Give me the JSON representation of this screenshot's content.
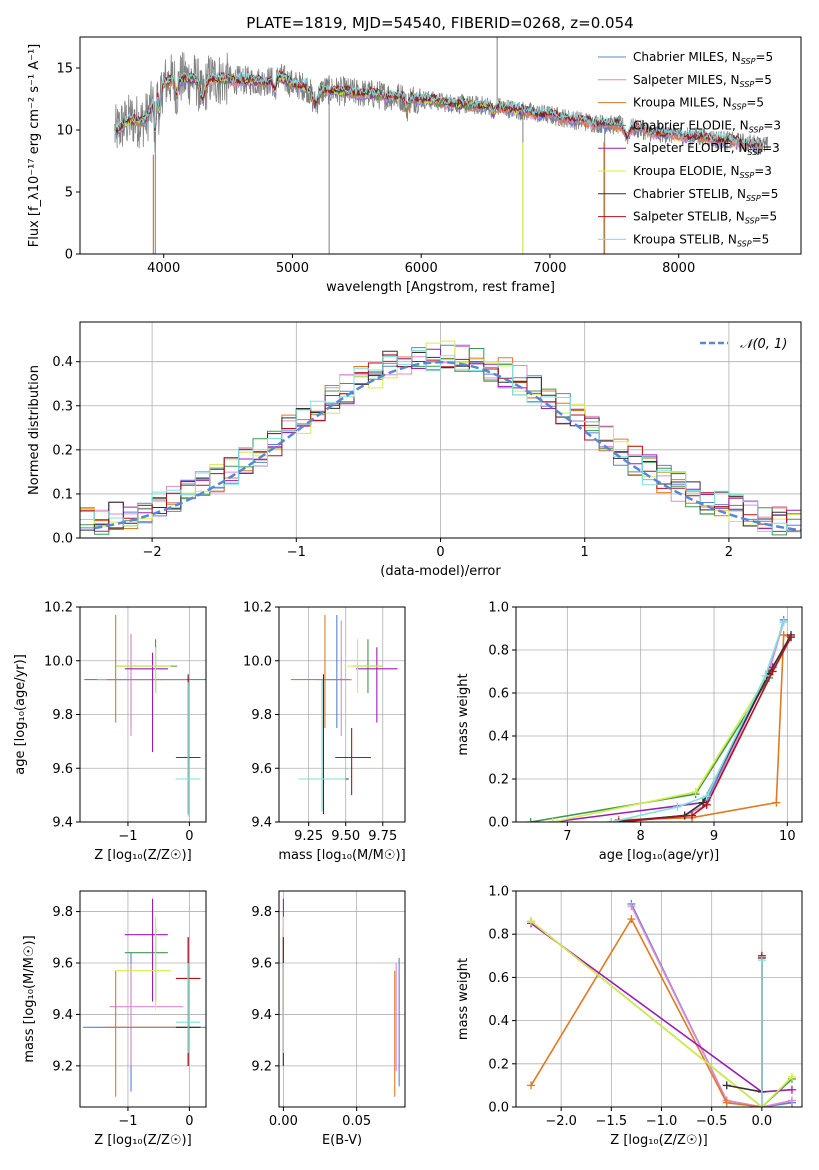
{
  "title": "PLATE=1819, MJD=54540, FIBERID=0268, z=0.054",
  "colors": {
    "Chabrier MILES": "#5b80d6",
    "Salpeter MILES": "#e08ad0",
    "Kroupa MILES": "#e07a20",
    "Chabrier ELODIE": "#3f9a50",
    "Salpeter ELODIE": "#9a1fb5",
    "Kroupa ELODIE": "#d6ec4a",
    "Chabrier STELIB": "#303030",
    "Salpeter STELIB": "#b3121d",
    "Kroupa STELIB": "#7fe0e0",
    "data": "#808080",
    "gauss": "#5588dd"
  },
  "chart_data": [
    {
      "type": "line",
      "id": "spectrum",
      "xlabel": "wavelength [Angstrom, rest frame]",
      "ylabel": "Flux [f_λ10⁻¹⁷ erg cm⁻² s⁻¹ A⁻¹]",
      "xlim": [
        3350,
        8950
      ],
      "ylim": [
        0,
        17.5
      ],
      "xticks": [
        4000,
        5000,
        6000,
        7000,
        8000
      ],
      "yticks": [
        0,
        5,
        10,
        15
      ],
      "legend_position": "top-right",
      "legend": [
        {
          "name": "Chabrier MILES",
          "n_ssp": "5"
        },
        {
          "name": "Salpeter MILES",
          "n_ssp": "5"
        },
        {
          "name": "Kroupa MILES",
          "n_ssp": "5"
        },
        {
          "name": "Chabrier ELODIE",
          "n_ssp": "3"
        },
        {
          "name": "Salpeter ELODIE",
          "n_ssp": "3"
        },
        {
          "name": "Kroupa ELODIE",
          "n_ssp": "3"
        },
        {
          "name": "Chabrier STELIB",
          "n_ssp": "5"
        },
        {
          "name": "Salpeter STELIB",
          "n_ssp": "5"
        },
        {
          "name": "Kroupa STELIB",
          "n_ssp": "5"
        }
      ],
      "continuum": {
        "x": [
          3620,
          3700,
          3800,
          3900,
          4000,
          4100,
          4200,
          4400,
          4600,
          4800,
          4900,
          5000,
          5200,
          5400,
          5600,
          5800,
          6000,
          6200,
          6400,
          6600,
          6800,
          7000,
          7200,
          7400,
          7600,
          7800,
          8000,
          8200,
          8400,
          8700
        ],
        "y": [
          9.8,
          10.6,
          11.8,
          12.8,
          13.8,
          14.2,
          14.1,
          14.1,
          14.0,
          13.9,
          14.3,
          13.7,
          13.3,
          13.1,
          12.9,
          12.7,
          12.5,
          12.2,
          12.0,
          11.9,
          11.5,
          11.2,
          10.8,
          10.5,
          10.3,
          9.8,
          9.6,
          9.4,
          9.1,
          8.7
        ]
      }
    },
    {
      "type": "histogram",
      "id": "residuals",
      "xlabel": "(data-model)/error",
      "ylabel": "Normed distribution",
      "xlim": [
        -2.5,
        2.5
      ],
      "ylim": [
        0,
        0.49
      ],
      "xticks": [
        -2,
        -1,
        0,
        1,
        2
      ],
      "yticks": [
        0.0,
        0.1,
        0.2,
        0.3,
        0.4
      ],
      "legend": "𝒩(0, 1)",
      "legend_position": "top-right",
      "grid": true
    },
    {
      "type": "scatter",
      "id": "z-age",
      "xlabel": "Z [log₁₀(Z/Z☉)]",
      "ylabel": "age  [log₁₀(age/yr)]",
      "xlim": [
        -1.78,
        0.27
      ],
      "ylim": [
        9.4,
        10.2
      ],
      "xticks": [
        -1,
        0
      ],
      "yticks": [
        9.4,
        9.6,
        9.8,
        10.0,
        10.2
      ],
      "grid": true,
      "points": [
        {
          "model": "Chabrier MILES",
          "x": -0.18,
          "xerr": 1.53,
          "y": 9.93,
          "yerr": 0.03,
          "vx": -0.95,
          "vy0": 9.75,
          "vy1": 10.1
        },
        {
          "model": "Salpeter MILES",
          "x": -0.95,
          "xerr": 0.55,
          "y": 9.93,
          "yerr": 0.02,
          "vx": -0.95,
          "vy0": 9.72,
          "vy1": 10.1
        },
        {
          "model": "Kroupa MILES",
          "x": -0.7,
          "xerr": 0.65,
          "y": 9.93,
          "yerr": 0.02,
          "vx": -1.2,
          "vy0": 9.77,
          "vy1": 10.17
        },
        {
          "model": "Chabrier ELODIE",
          "x": -0.7,
          "xerr": 0.5,
          "y": 9.98,
          "yerr": 0.01,
          "vx": -0.55,
          "vy0": 9.88,
          "vy1": 10.08
        },
        {
          "model": "Salpeter ELODIE",
          "x": -0.7,
          "xerr": 0.35,
          "y": 9.97,
          "yerr": 0.01,
          "vx": -0.6,
          "vy0": 9.66,
          "vy1": 10.03
        },
        {
          "model": "Kroupa ELODIE",
          "x": -0.75,
          "xerr": 0.45,
          "y": 9.98,
          "yerr": 0.01,
          "vx": -0.55,
          "vy0": 9.88,
          "vy1": 10.05
        },
        {
          "model": "Chabrier STELIB",
          "x": -0.02,
          "xerr": 0.2,
          "y": 9.56,
          "yerr": 0.01,
          "vx": -0.02,
          "vy0": 9.43,
          "vy1": 9.95
        },
        {
          "model": "Salpeter STELIB",
          "x": -0.02,
          "xerr": 0.2,
          "y": 9.64,
          "yerr": 0.01,
          "vx": -0.02,
          "vy0": 9.43,
          "vy1": 9.94
        },
        {
          "model": "Kroupa STELIB",
          "x": -0.02,
          "xerr": 0.2,
          "y": 9.56,
          "yerr": 0.01,
          "vx": -0.02,
          "vy0": 9.42,
          "vy1": 9.92
        }
      ]
    },
    {
      "type": "scatter",
      "id": "mass-age",
      "xlabel": "mass [log₁₀(M/M☉)]",
      "ylabel": "",
      "xlim": [
        9.05,
        9.9
      ],
      "ylim": [
        9.4,
        10.2
      ],
      "xticks": [
        9.25,
        9.5,
        9.75
      ],
      "xticklabels": [
        "9.25",
        "9.50",
        "9.75"
      ],
      "yticks": [
        9.4,
        9.6,
        9.8,
        10.0,
        10.2
      ],
      "grid": true,
      "points": [
        {
          "model": "Chabrier MILES",
          "x": 9.42,
          "xerr": 0.12,
          "y": 9.93,
          "yerr": 0.02,
          "vx": 9.44,
          "vy0": 9.75,
          "vy1": 10.17
        },
        {
          "model": "Salpeter MILES",
          "x": 9.44,
          "xerr": 0.1,
          "y": 9.93,
          "yerr": 0.02,
          "vx": 9.47,
          "vy0": 9.72,
          "vy1": 10.15
        },
        {
          "model": "Kroupa MILES",
          "x": 9.33,
          "xerr": 0.2,
          "y": 9.93,
          "yerr": 0.02,
          "vx": 9.36,
          "vy0": 9.75,
          "vy1": 10.17
        },
        {
          "model": "Chabrier ELODIE",
          "x": 9.65,
          "xerr": 0.1,
          "y": 9.98,
          "yerr": 0.01,
          "vx": 9.65,
          "vy0": 9.88,
          "vy1": 10.08
        },
        {
          "model": "Salpeter ELODIE",
          "x": 9.71,
          "xerr": 0.14,
          "y": 9.97,
          "yerr": 0.01,
          "vx": 9.71,
          "vy0": 9.77,
          "vy1": 10.05
        },
        {
          "model": "Kroupa ELODIE",
          "x": 9.63,
          "xerr": 0.12,
          "y": 9.98,
          "yerr": 0.01,
          "vx": 9.58,
          "vy0": 9.88,
          "vy1": 10.08
        },
        {
          "model": "Chabrier STELIB",
          "x": 9.36,
          "xerr": 0.16,
          "y": 9.56,
          "yerr": 0.01,
          "vx": 9.35,
          "vy0": 9.43,
          "vy1": 9.95
        },
        {
          "model": "Salpeter STELIB",
          "x": 9.55,
          "xerr": 0.12,
          "y": 9.64,
          "yerr": 0.01,
          "vx": 9.54,
          "vy0": 9.5,
          "vy1": 9.75
        },
        {
          "model": "Kroupa STELIB",
          "x": 9.34,
          "xerr": 0.16,
          "y": 9.56,
          "yerr": 0.01,
          "vx": 9.34,
          "vy0": 9.44,
          "vy1": 9.93
        }
      ]
    },
    {
      "type": "line",
      "id": "age-weight",
      "xlabel": "age  [log₁₀(age/yr)]",
      "ylabel": "mass weight",
      "xlim": [
        6.3,
        10.2
      ],
      "ylim": [
        0,
        1.0
      ],
      "xticks": [
        7,
        8,
        9,
        10
      ],
      "yticks": [
        0.0,
        0.2,
        0.4,
        0.6,
        0.8,
        1.0
      ],
      "grid": true,
      "series": [
        {
          "model": "Chabrier MILES",
          "x": [
            7.7,
            8.6,
            8.9,
            9.75,
            9.95
          ],
          "y": [
            0.0,
            0.03,
            0.1,
            0.7,
            0.94
          ]
        },
        {
          "model": "Salpeter MILES",
          "x": [
            7.7,
            8.6,
            8.9,
            9.75,
            9.95
          ],
          "y": [
            0.0,
            0.03,
            0.08,
            0.7,
            0.93
          ]
        },
        {
          "model": "Kroupa MILES",
          "x": [
            7.7,
            8.7,
            9.85,
            9.95,
            10.05
          ],
          "y": [
            0.01,
            0.02,
            0.09,
            0.87,
            0.86
          ]
        },
        {
          "model": "Chabrier ELODIE",
          "x": [
            6.5,
            8.75,
            9.75,
            10.05
          ],
          "y": [
            0.0,
            0.13,
            0.67,
            0.86
          ]
        },
        {
          "model": "Salpeter ELODIE",
          "x": [
            6.8,
            8.85,
            9.8,
            10.05
          ],
          "y": [
            0.0,
            0.09,
            0.72,
            0.86
          ]
        },
        {
          "model": "Kroupa ELODIE",
          "x": [
            6.8,
            8.75,
            9.75,
            10.05
          ],
          "y": [
            0.0,
            0.14,
            0.69,
            0.86
          ]
        },
        {
          "model": "Chabrier STELIB",
          "x": [
            7.6,
            8.6,
            8.85,
            9.75,
            10.05
          ],
          "y": [
            0.0,
            0.03,
            0.09,
            0.69,
            0.87
          ]
        },
        {
          "model": "Salpeter STELIB",
          "x": [
            7.7,
            8.7,
            8.9,
            9.8,
            10.05
          ],
          "y": [
            0.0,
            0.03,
            0.08,
            0.7,
            0.86
          ]
        },
        {
          "model": "Kroupa STELIB",
          "x": [
            7.6,
            8.5,
            8.9,
            9.7,
            9.95
          ],
          "y": [
            0.0,
            0.07,
            0.12,
            0.68,
            0.93
          ]
        }
      ]
    },
    {
      "type": "scatter",
      "id": "z-mass",
      "xlabel": "Z [log₁₀(Z/Z☉)]",
      "ylabel": "mass [log₁₀(M/M☉)]",
      "xlim": [
        -1.78,
        0.27
      ],
      "ylim": [
        9.04,
        9.88
      ],
      "xticks": [
        -1,
        0
      ],
      "yticks": [
        9.2,
        9.4,
        9.6,
        9.8
      ],
      "grid": true,
      "points": [
        {
          "model": "Chabrier MILES",
          "x": -0.18,
          "xerr": 1.55,
          "y": 9.35,
          "yerr": 0.01,
          "vx": -0.95,
          "vy0": 9.1,
          "vy1": 9.64
        },
        {
          "model": "Salpeter MILES",
          "x": -0.7,
          "xerr": 0.6,
          "y": 9.43,
          "yerr": 0.01,
          "vx": -0.95,
          "vy0": 9.2,
          "vy1": 9.6
        },
        {
          "model": "Kroupa MILES",
          "x": -0.7,
          "xerr": 0.65,
          "y": 9.35,
          "yerr": 0.01,
          "vx": -1.2,
          "vy0": 9.08,
          "vy1": 9.57
        },
        {
          "model": "Chabrier ELODIE",
          "x": -0.7,
          "xerr": 0.35,
          "y": 9.64,
          "yerr": 0.01,
          "vx": -0.55,
          "vy0": 9.45,
          "vy1": 9.74
        },
        {
          "model": "Salpeter ELODIE",
          "x": -0.7,
          "xerr": 0.35,
          "y": 9.71,
          "yerr": 0.01,
          "vx": -0.6,
          "vy0": 9.45,
          "vy1": 9.85
        },
        {
          "model": "Kroupa ELODIE",
          "x": -0.75,
          "xerr": 0.45,
          "y": 9.57,
          "yerr": 0.01,
          "vx": -0.55,
          "vy0": 9.42,
          "vy1": 9.78
        },
        {
          "model": "Chabrier STELIB",
          "x": -0.02,
          "xerr": 0.2,
          "y": 9.35,
          "yerr": 0.01,
          "vx": -0.02,
          "vy0": 9.2,
          "vy1": 9.7
        },
        {
          "model": "Salpeter STELIB",
          "x": -0.02,
          "xerr": 0.2,
          "y": 9.54,
          "yerr": 0.01,
          "vx": -0.02,
          "vy0": 9.2,
          "vy1": 9.7
        },
        {
          "model": "Kroupa STELIB",
          "x": -0.02,
          "xerr": 0.2,
          "y": 9.37,
          "yerr": 0.01,
          "vx": -0.02,
          "vy0": 9.25,
          "vy1": 9.6
        }
      ]
    },
    {
      "type": "scatter",
      "id": "ebv-mass",
      "xlabel": "E(B-V)",
      "ylabel": "",
      "xlim": [
        -0.003,
        0.083
      ],
      "ylim": [
        9.04,
        9.88
      ],
      "xticks": [
        0.0,
        0.05
      ],
      "xticklabels": [
        "0.00",
        "0.05"
      ],
      "yticks": [
        9.2,
        9.4,
        9.6,
        9.8
      ],
      "grid": true,
      "points": [
        {
          "model": "Chabrier MILES",
          "x": 0.079,
          "vy0": 9.12,
          "vy1": 9.62
        },
        {
          "model": "Salpeter MILES",
          "x": 0.077,
          "vy0": 9.18,
          "vy1": 9.6
        },
        {
          "model": "Kroupa MILES",
          "x": 0.076,
          "vy0": 9.08,
          "vy1": 9.57
        },
        {
          "model": "Chabrier ELODIE",
          "x": 0.0,
          "vy0": 9.42,
          "vy1": 9.74
        },
        {
          "model": "Salpeter ELODIE",
          "x": 0.0,
          "vy0": 9.6,
          "vy1": 9.85
        },
        {
          "model": "Kroupa ELODIE",
          "x": 0.0,
          "vy0": 9.42,
          "vy1": 9.78
        },
        {
          "model": "Chabrier STELIB",
          "x": 0.0,
          "vy0": 9.2,
          "vy1": 9.7
        },
        {
          "model": "Salpeter STELIB",
          "x": 0.0,
          "vy0": 9.2,
          "vy1": 9.7
        },
        {
          "model": "Kroupa STELIB",
          "x": 0.0,
          "vy0": 9.25,
          "vy1": 9.6
        }
      ]
    },
    {
      "type": "line",
      "id": "z-weight",
      "xlabel": "Z [log₁₀(Z/Z☉)]",
      "ylabel": "mass weight",
      "xlim": [
        -2.45,
        0.4
      ],
      "ylim": [
        0,
        1.0
      ],
      "xticks": [
        -2.0,
        -1.5,
        -1.0,
        -0.5,
        0.0
      ],
      "xticklabels": [
        "−2.0",
        "−1.5",
        "−1.0",
        "−0.5",
        "0.0"
      ],
      "yticks": [
        0.0,
        0.2,
        0.4,
        0.6,
        0.8,
        1.0
      ],
      "grid": true,
      "series": [
        {
          "model": "Chabrier MILES",
          "x": [
            -1.3,
            -0.35,
            0.0,
            0.3
          ],
          "y": [
            0.94,
            0.03,
            0.0,
            0.02
          ]
        },
        {
          "model": "Salpeter MILES",
          "x": [
            -1.3,
            -0.35,
            0.0,
            0.3
          ],
          "y": [
            0.93,
            0.03,
            0.0,
            0.03
          ]
        },
        {
          "model": "Kroupa MILES",
          "x": [
            -2.3,
            -1.3,
            -0.35,
            0.0
          ],
          "y": [
            0.1,
            0.87,
            0.02,
            0.0
          ]
        },
        {
          "model": "Chabrier ELODIE",
          "x": [
            -2.3,
            0.0,
            0.3
          ],
          "y": [
            0.86,
            0.0,
            0.13
          ]
        },
        {
          "model": "Salpeter ELODIE",
          "x": [
            -2.3,
            0.0,
            0.3
          ],
          "y": [
            0.85,
            0.07,
            0.08
          ]
        },
        {
          "model": "Kroupa ELODIE",
          "x": [
            -2.3,
            0.0,
            0.3
          ],
          "y": [
            0.86,
            0.0,
            0.14
          ]
        },
        {
          "model": "Chabrier STELIB",
          "x": [
            -0.35,
            0.0,
            0.0
          ],
          "y": [
            0.1,
            0.07,
            0.69
          ]
        },
        {
          "model": "Salpeter STELIB",
          "x": [
            0.0,
            0.0
          ],
          "y": [
            0.0,
            0.7
          ]
        },
        {
          "model": "Kroupa STELIB",
          "x": [
            0.0,
            0.0
          ],
          "y": [
            0.0,
            0.68
          ]
        }
      ]
    }
  ]
}
